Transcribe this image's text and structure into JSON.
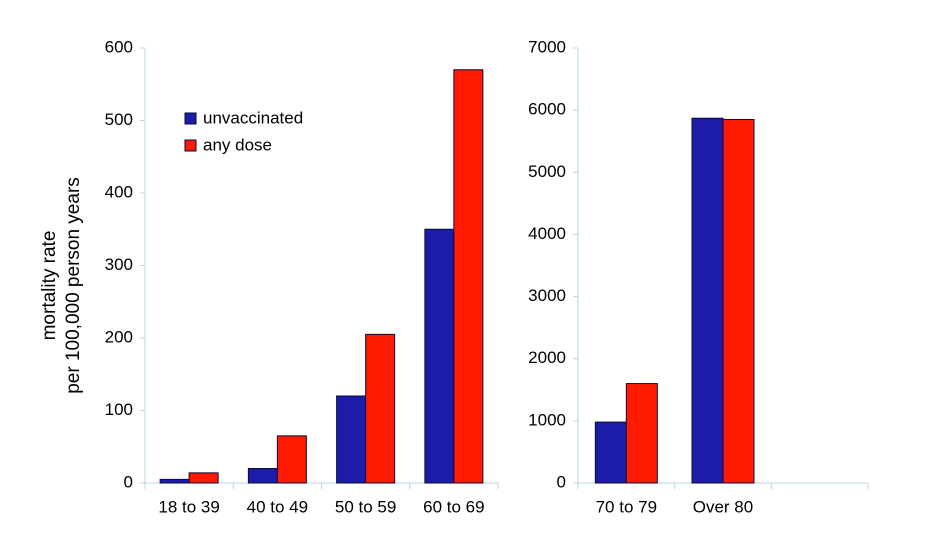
{
  "chart_data": [
    {
      "type": "bar",
      "ylabel": [
        "mortality rate",
        "per 100,000 person years"
      ],
      "categories": [
        "18 to 39",
        "40 to 49",
        "50 to 59",
        "60 to 69"
      ],
      "series": [
        {
          "name": "unvaccinated",
          "color": "#1c1ca8",
          "values": [
            5,
            20,
            120,
            350
          ]
        },
        {
          "name": "any dose",
          "color": "#ff1a00",
          "values": [
            14,
            65,
            205,
            570
          ]
        }
      ],
      "ylim": [
        0,
        600
      ],
      "yticks": [
        0,
        100,
        200,
        300,
        400,
        500,
        600
      ],
      "legend": "upper left",
      "grid": false
    },
    {
      "type": "bar",
      "categories": [
        "70 to 79",
        "Over 80",
        null
      ],
      "series": [
        {
          "color": "#1c1ca8",
          "values": [
            980,
            5870,
            null
          ]
        },
        {
          "color": "#ff1a00",
          "values": [
            1600,
            5850,
            null
          ]
        }
      ],
      "ylim": [
        0,
        7000
      ],
      "yticks": [
        0,
        1000,
        2000,
        3000,
        4000,
        5000,
        6000,
        7000
      ],
      "grid": false
    }
  ]
}
